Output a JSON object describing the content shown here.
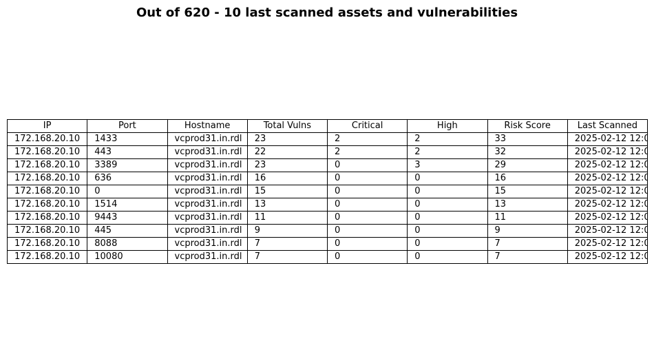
{
  "chart_data": {
    "type": "table",
    "title": "Out of 620 - 10 last scanned assets and vulnerabilities",
    "columns": [
      "IP",
      "Port",
      "Hostname",
      "Total Vulns",
      "Critical",
      "High",
      "Risk Score",
      "Last Scanned"
    ],
    "rows": [
      [
        "172.168.20.10",
        "1433",
        "vcprod31.in.rdl",
        "23",
        "2",
        "2",
        "33",
        "2025-02-12 12:0"
      ],
      [
        "172.168.20.10",
        "443",
        "vcprod31.in.rdl",
        "22",
        "2",
        "2",
        "32",
        "2025-02-12 12:0"
      ],
      [
        "172.168.20.10",
        "3389",
        "vcprod31.in.rdl",
        "23",
        "0",
        "3",
        "29",
        "2025-02-12 12:0"
      ],
      [
        "172.168.20.10",
        "636",
        "vcprod31.in.rdl",
        "16",
        "0",
        "0",
        "16",
        "2025-02-12 12:0"
      ],
      [
        "172.168.20.10",
        "0",
        "vcprod31.in.rdl",
        "15",
        "0",
        "0",
        "15",
        "2025-02-12 12:0"
      ],
      [
        "172.168.20.10",
        "1514",
        "vcprod31.in.rdl",
        "13",
        "0",
        "0",
        "13",
        "2025-02-12 12:0"
      ],
      [
        "172.168.20.10",
        "9443",
        "vcprod31.in.rdl",
        "11",
        "0",
        "0",
        "11",
        "2025-02-12 12:0"
      ],
      [
        "172.168.20.10",
        "445",
        "vcprod31.in.rdl",
        "9",
        "0",
        "0",
        "9",
        "2025-02-12 12:0"
      ],
      [
        "172.168.20.10",
        "8088",
        "vcprod31.in.rdl",
        "7",
        "0",
        "0",
        "7",
        "2025-02-12 12:0"
      ],
      [
        "172.168.20.10",
        "10080",
        "vcprod31.in.rdl",
        "7",
        "0",
        "0",
        "7",
        "2025-02-12 12:0"
      ]
    ]
  }
}
